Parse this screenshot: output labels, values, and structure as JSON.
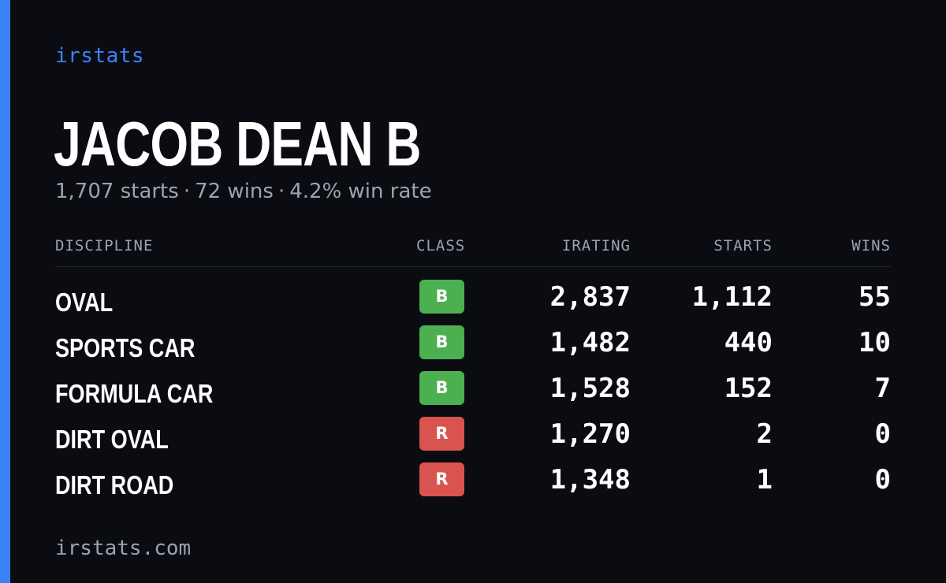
{
  "brand": "irstats",
  "driver": {
    "name": "JACOB DEAN B",
    "starts": "1,707 starts",
    "wins": "72 wins",
    "win_rate": "4.2% win rate",
    "separator": "·"
  },
  "table": {
    "headers": {
      "discipline": "DISCIPLINE",
      "class": "CLASS",
      "irating": "IRATING",
      "starts": "STARTS",
      "wins": "WINS"
    },
    "rows": [
      {
        "discipline": "OVAL",
        "class": "B",
        "class_color": "#4caf50",
        "irating": "2,837",
        "starts": "1,112",
        "wins": "55"
      },
      {
        "discipline": "SPORTS CAR",
        "class": "B",
        "class_color": "#4caf50",
        "irating": "1,482",
        "starts": "440",
        "wins": "10"
      },
      {
        "discipline": "FORMULA CAR",
        "class": "B",
        "class_color": "#4caf50",
        "irating": "1,528",
        "starts": "152",
        "wins": "7"
      },
      {
        "discipline": "DIRT OVAL",
        "class": "R",
        "class_color": "#d9534f",
        "irating": "1,270",
        "starts": "2",
        "wins": "0"
      },
      {
        "discipline": "DIRT ROAD",
        "class": "R",
        "class_color": "#d9534f",
        "irating": "1,348",
        "starts": "1",
        "wins": "0"
      }
    ]
  },
  "footer": "irstats.com",
  "colors": {
    "accent": "#3b82f6",
    "background": "#0a0c12",
    "muted_text": "#9ca3af",
    "class_b": "#4caf50",
    "class_r": "#d9534f"
  }
}
